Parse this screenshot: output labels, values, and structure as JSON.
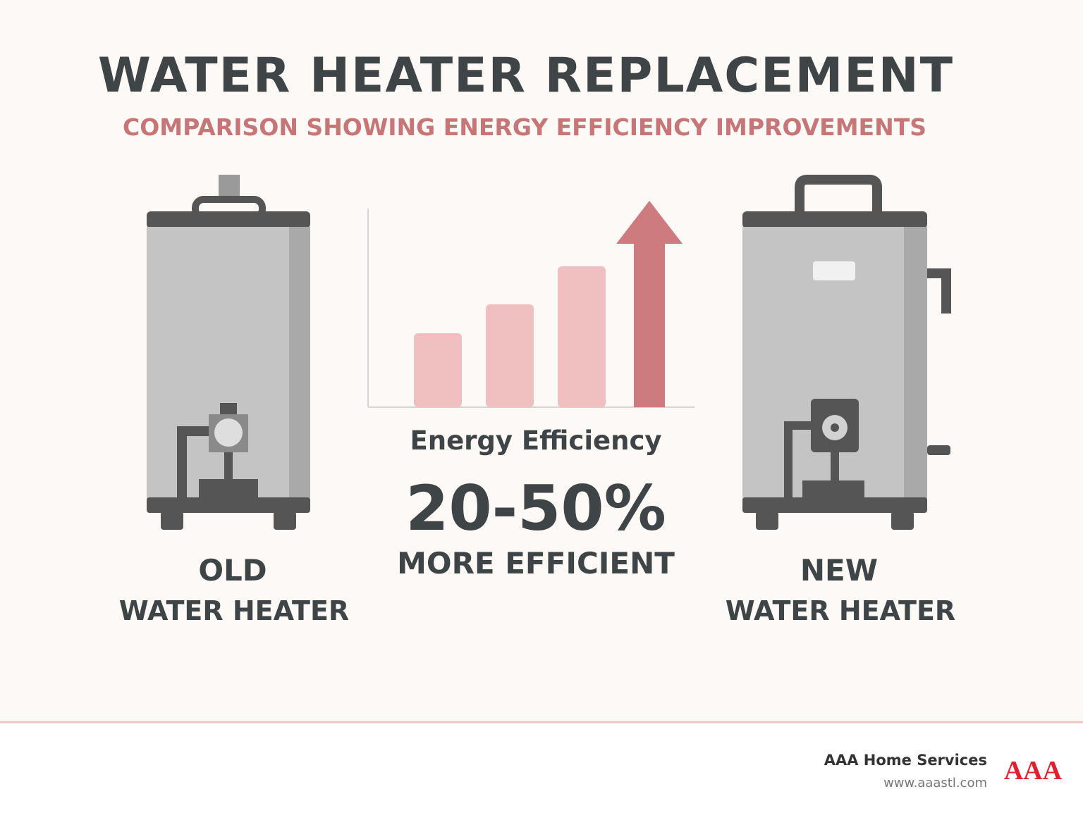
{
  "header": {
    "title": "WATER HEATER REPLACEMENT",
    "subtitle": "COMPARISON SHOWING ENERGY EFFICIENCY IMPROVEMENTS"
  },
  "old_heater": {
    "label": "OLD",
    "sublabel": "WATER HEATER"
  },
  "center": {
    "chart_label": "Energy Efficiency",
    "stat": "20-50%",
    "stat_text": "MORE EFFICIENT"
  },
  "new_heater": {
    "label": "NEW",
    "sublabel": "WATER HEATER"
  },
  "footer": {
    "company": "AAA Home Services",
    "url": "www.aaastl.com",
    "logo": "AAA"
  }
}
